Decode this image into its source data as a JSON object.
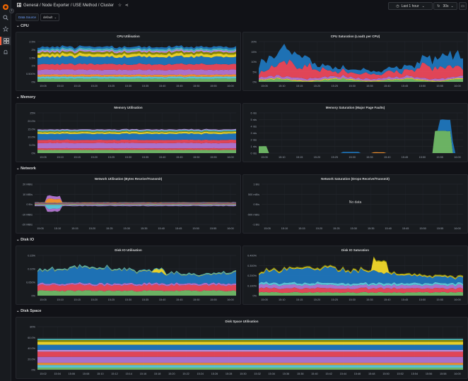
{
  "topbar": {
    "breadcrumb": "General  /  Node Exporter / USE Method / Cluster",
    "time_range": "Last 1 hour",
    "refresh": "30s"
  },
  "variables": {
    "datasource_label": "Data Source",
    "datasource_value": "default"
  },
  "colors": {
    "green": "#73bf69",
    "yellow": "#fade2a",
    "blue": "#1f78c1",
    "red": "#f2495c",
    "orange": "#ff9830",
    "purple": "#b877d9",
    "cyan": "#5ecfe5",
    "olive": "#8f8f00",
    "teal": "#4fc4cd",
    "pink": "#ca95e5"
  },
  "rows": [
    {
      "title": "CPU"
    },
    {
      "title": "Memory"
    },
    {
      "title": "Network"
    },
    {
      "title": "Disk IO"
    },
    {
      "title": "Disk Space"
    }
  ],
  "x_ticks": [
    "15:05",
    "15:10",
    "15:15",
    "15:20",
    "15:25",
    "15:30",
    "15:35",
    "15:40",
    "15:45",
    "15:50",
    "15:55",
    "16:00"
  ],
  "x_ticks_wide": [
    "15:02",
    "15:04",
    "15:06",
    "15:08",
    "15:10",
    "15:12",
    "15:14",
    "15:16",
    "15:18",
    "15:20",
    "15:22",
    "15:24",
    "15:26",
    "15:28",
    "15:30",
    "15:32",
    "15:34",
    "15:36",
    "15:38",
    "15:40",
    "15:42",
    "15:44",
    "15:46",
    "15:48",
    "15:50",
    "15:52",
    "15:54",
    "15:56",
    "15:58",
    "16:00"
  ],
  "panels": {
    "cpu_util": {
      "title": "CPU Utilisation",
      "y_ticks": [
        "2.5%",
        "2%",
        "1.5%",
        "1%",
        "0.500%",
        "0%"
      ]
    },
    "cpu_sat": {
      "title": "CPU Saturation (Load1 per CPU)",
      "y_ticks": [
        "20%",
        "15%",
        "10%",
        "5%",
        "0%"
      ]
    },
    "mem_util": {
      "title": "Memory Utilisation",
      "y_ticks": [
        "25%",
        "20.0%",
        "15.0%",
        "10.0%",
        "5.0%",
        "0%"
      ]
    },
    "mem_sat": {
      "title": "Memory Saturation (Major Page Faults)",
      "y_ticks": [
        "6 rds",
        "5 rds",
        "4 rds",
        "3 rds",
        "2 rds",
        "1 rds",
        "0 rds"
      ]
    },
    "net_util": {
      "title": "Network Utilisation (Bytes Receive/Transmit)",
      "y_ticks": [
        "20 MB/s",
        "10 MB/s",
        "0 B/s",
        "-10 MB/s",
        "-20 MB/s"
      ]
    },
    "net_sat": {
      "title": "Network Saturation (Drops Receive/Transmit)",
      "y_ticks": [
        "1 B/s",
        "500 mB/s",
        "0 B/s",
        "-500 mB/s",
        "-1 B/s"
      ],
      "no_data": "No data"
    },
    "disk_util": {
      "title": "Disk IO Utilisation",
      "y_ticks": [
        "0.15%",
        "0.10%",
        "0.050%",
        "0%"
      ]
    },
    "disk_sat": {
      "title": "Disk IO Saturation",
      "y_ticks": [
        "0.400%",
        "0.300%",
        "0.200%",
        "0.100%",
        "0%"
      ]
    },
    "space_util": {
      "title": "Disk Space Utilisation",
      "y_ticks": [
        "80%",
        "60.0%",
        "40.0%",
        "20.0%",
        "0%"
      ]
    }
  }
}
